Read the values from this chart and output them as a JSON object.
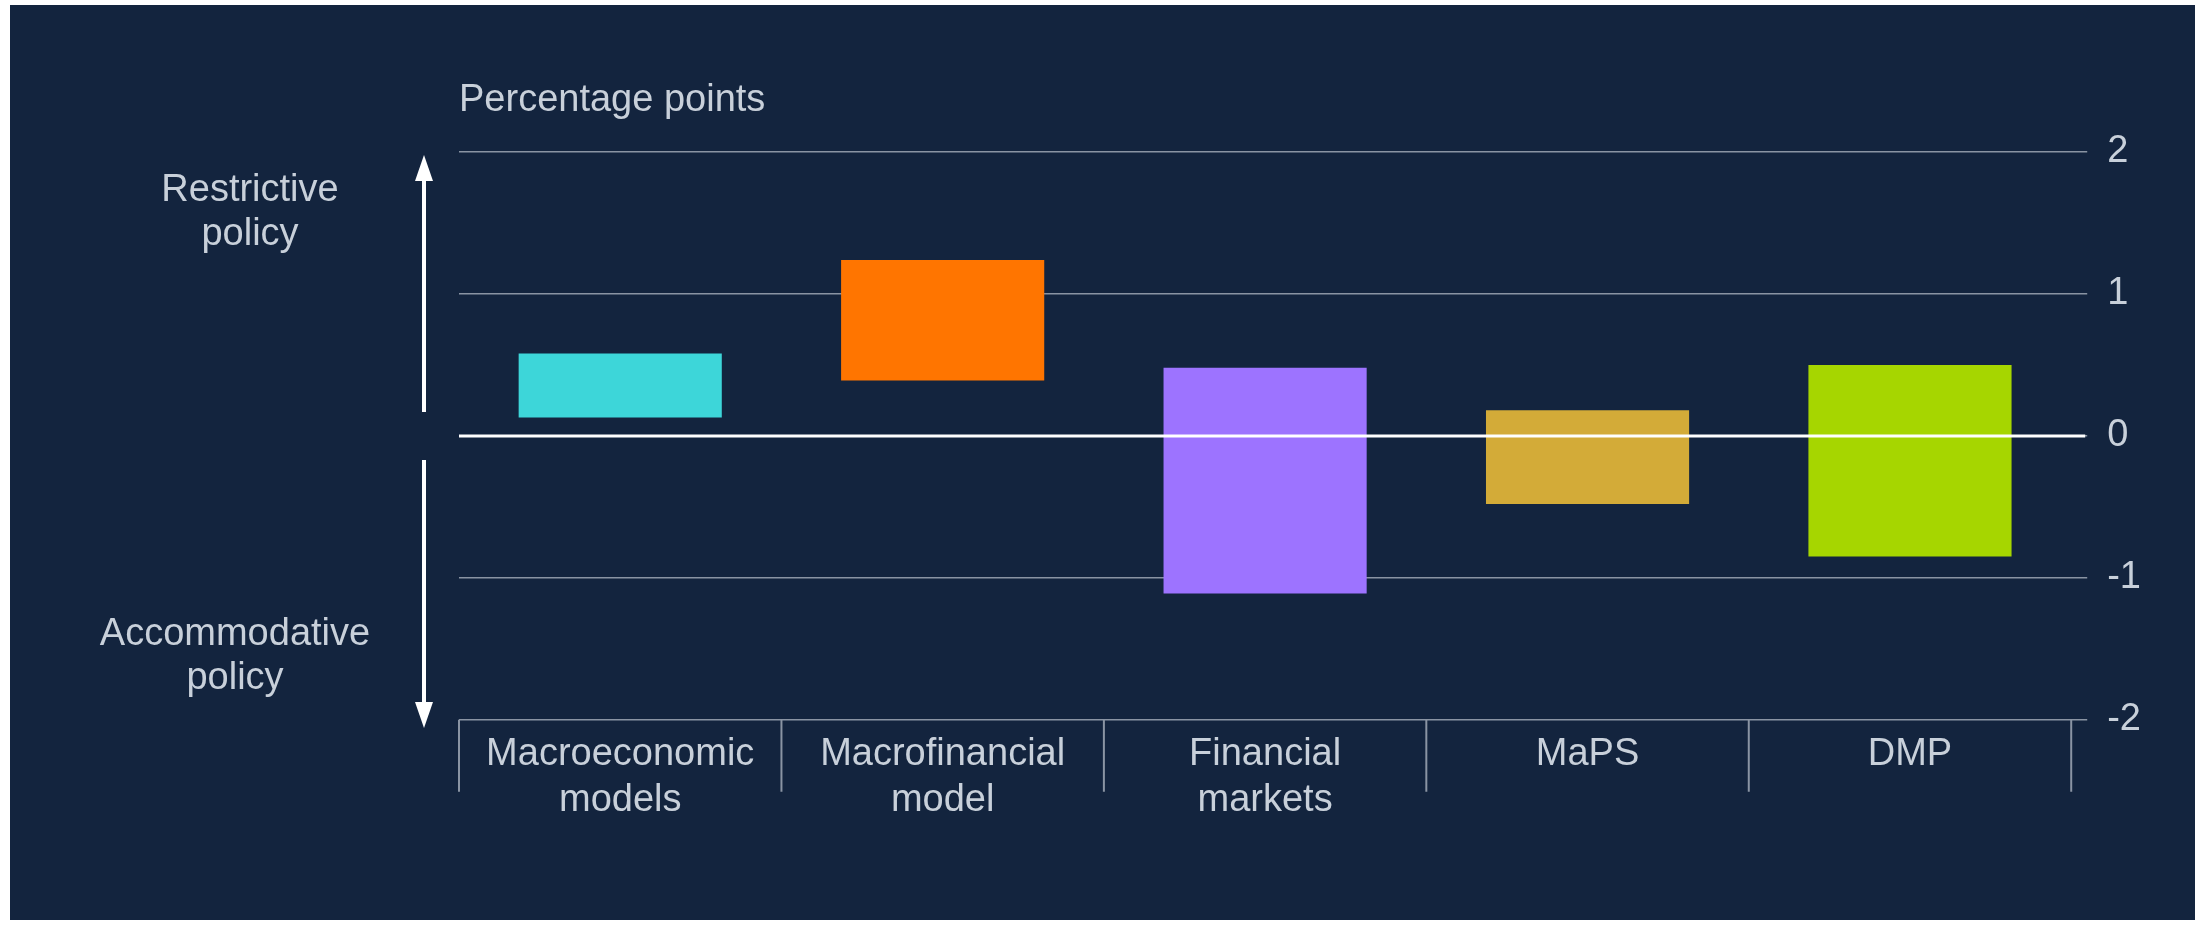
{
  "chart_data": {
    "type": "bar",
    "ylabel": "Percentage points",
    "categories": [
      "Macroeconomic models",
      "Macrofinancial model",
      "Financial markets",
      "MaPS",
      "DMP"
    ],
    "base": [
      0.13,
      0.39,
      -1.11,
      -0.48,
      -0.85
    ],
    "values": [
      0.45,
      0.85,
      1.59,
      0.66,
      1.35
    ],
    "colors": [
      "#3dd6d9",
      "#ff7500",
      "#9d73ff",
      "#d3ab38",
      "#a6d600"
    ],
    "ylim": [
      -2,
      2
    ],
    "yticks": [
      -2,
      -1,
      0,
      1,
      2
    ],
    "grid": "y",
    "ref_lines": [
      {
        "axis": "y",
        "value": 0,
        "color": "#ffffff"
      }
    ],
    "annotations": [
      "Restrictive policy",
      "Accommodative policy"
    ]
  }
}
